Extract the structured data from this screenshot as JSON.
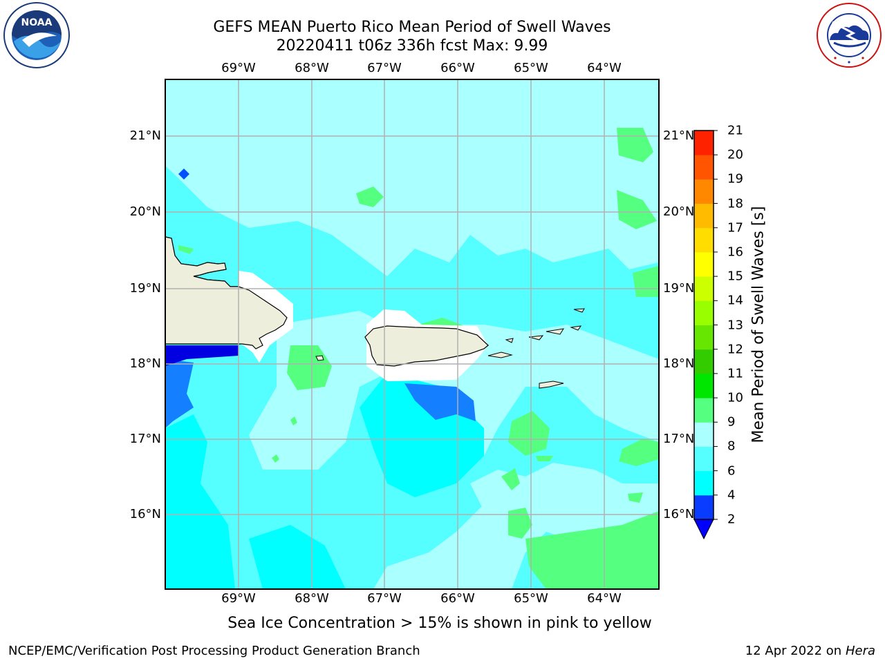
{
  "title_line1": "GEFS MEAN Puerto Rico Mean Period of Swell Waves",
  "title_line2": "20220411 t06z 336h fcst   Max: 9.99",
  "lon_labels": [
    "69°W",
    "68°W",
    "67°W",
    "66°W",
    "65°W",
    "64°W"
  ],
  "lat_labels": [
    "21°N",
    "20°N",
    "19°N",
    "18°N",
    "17°N",
    "16°N"
  ],
  "colorbar": {
    "title": "Mean Period of Swell Waves [s]",
    "ticks": [
      "2",
      "4",
      "6",
      "8",
      "9",
      "10",
      "11",
      "12",
      "13",
      "14",
      "15",
      "16",
      "17",
      "18",
      "19",
      "20",
      "21"
    ],
    "colors": [
      "#0a3cff",
      "#00ffff",
      "#55ffff",
      "#aaffff",
      "#55ff7f",
      "#00e600",
      "#33cc00",
      "#66e600",
      "#99ff00",
      "#ccff00",
      "#ffff00",
      "#ffdd00",
      "#ffbb00",
      "#ff8800",
      "#ff5500",
      "#ff2200"
    ],
    "extend_color": "#0000ff"
  },
  "map_colors": {
    "ocean_base": "#55ffff",
    "light": "#aaffff",
    "cyan": "#00ffff",
    "green": "#55ff7f",
    "blue": "#1480ff",
    "deep_blue": "#0000e0",
    "land": "#eeeedd",
    "grid": "#b0b0b0"
  },
  "note": "Sea Ice Concentration > 15% is shown in pink to yellow",
  "footer_left": "NCEP/EMC/Verification Post Processing Product Generation Branch",
  "footer_right_date": "12 Apr 2022 on",
  "footer_right_host": "Hera",
  "logos": {
    "noaa_text": "NOAA",
    "nws_text": "NATIONAL WEATHER SERVICE"
  }
}
